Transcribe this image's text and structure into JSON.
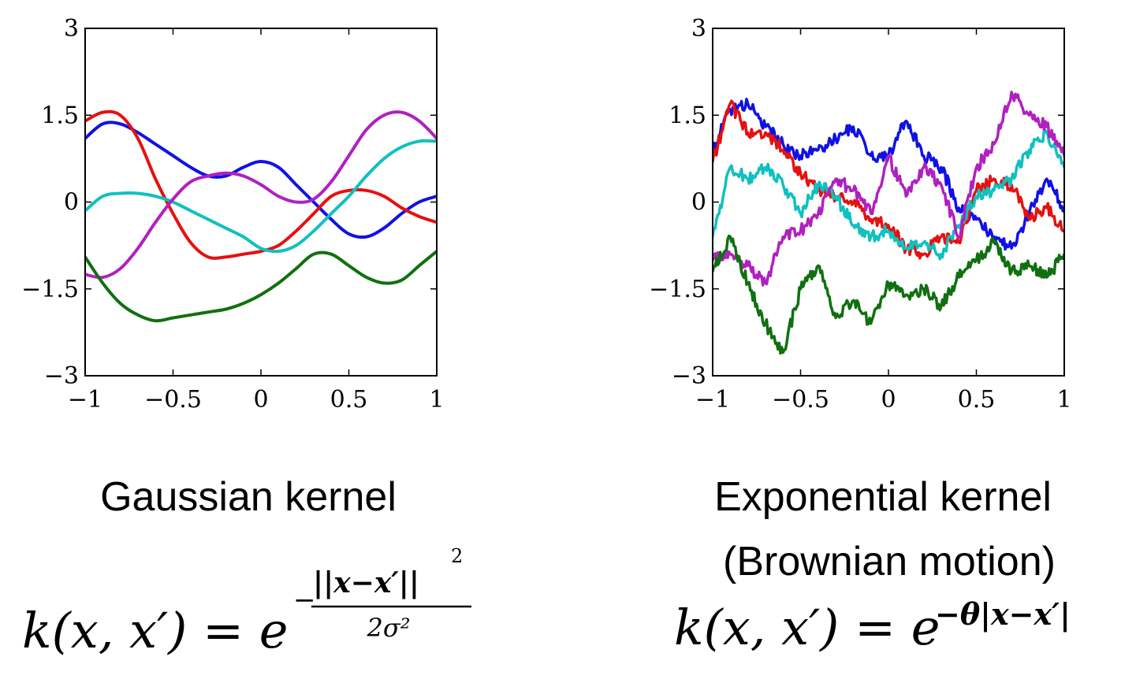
{
  "chart_data": [
    {
      "type": "line",
      "title": "",
      "xlabel": "",
      "ylabel": "",
      "xlim": [
        -1,
        1
      ],
      "ylim": [
        -3,
        3
      ],
      "x_ticks": [
        "−1",
        "−0.5",
        "0",
        "0.5",
        "1"
      ],
      "y_ticks": [
        "3",
        "1.5",
        "0",
        "−1.5",
        "−3"
      ],
      "x": [
        -1,
        -0.9,
        -0.8,
        -0.7,
        -0.6,
        -0.5,
        -0.4,
        -0.3,
        -0.2,
        -0.1,
        0,
        0.1,
        0.2,
        0.3,
        0.4,
        0.5,
        0.6,
        0.7,
        0.8,
        0.9,
        1
      ],
      "series": [
        {
          "color": "#1010e6",
          "values": [
            1.1,
            1.35,
            1.35,
            1.2,
            1.0,
            0.8,
            0.6,
            0.45,
            0.45,
            0.6,
            0.7,
            0.6,
            0.3,
            0.0,
            -0.3,
            -0.55,
            -0.6,
            -0.45,
            -0.2,
            0.0,
            0.1
          ]
        },
        {
          "color": "#e61010",
          "values": [
            1.4,
            1.55,
            1.5,
            1.1,
            0.4,
            -0.2,
            -0.7,
            -0.95,
            -0.95,
            -0.9,
            -0.85,
            -0.75,
            -0.5,
            -0.2,
            0.1,
            0.2,
            0.2,
            0.1,
            -0.1,
            -0.25,
            -0.35
          ]
        },
        {
          "color": "#10c0c0",
          "values": [
            -0.15,
            0.1,
            0.15,
            0.15,
            0.1,
            0.0,
            -0.15,
            -0.3,
            -0.45,
            -0.6,
            -0.8,
            -0.85,
            -0.75,
            -0.5,
            -0.2,
            0.1,
            0.45,
            0.75,
            0.95,
            1.05,
            1.05
          ]
        },
        {
          "color": "#b020c0",
          "values": [
            -1.25,
            -1.3,
            -1.15,
            -0.8,
            -0.35,
            0.05,
            0.35,
            0.45,
            0.5,
            0.45,
            0.3,
            0.1,
            0.0,
            0.05,
            0.35,
            0.8,
            1.25,
            1.5,
            1.55,
            1.4,
            1.1
          ]
        },
        {
          "color": "#107010",
          "values": [
            -0.95,
            -1.4,
            -1.75,
            -1.95,
            -2.05,
            -2.0,
            -1.95,
            -1.9,
            -1.85,
            -1.75,
            -1.6,
            -1.4,
            -1.15,
            -0.9,
            -0.9,
            -1.1,
            -1.3,
            -1.4,
            -1.35,
            -1.1,
            -0.85
          ]
        }
      ]
    },
    {
      "type": "line",
      "title": "",
      "xlabel": "",
      "ylabel": "",
      "xlim": [
        -1,
        1
      ],
      "ylim": [
        -3,
        3
      ],
      "x_ticks": [
        "−1",
        "−0.5",
        "0",
        "0.5",
        "1"
      ],
      "y_ticks": [
        "3",
        "1.5",
        "0",
        "−1.5",
        "−3"
      ],
      "x": [
        -1,
        -0.9,
        -0.8,
        -0.7,
        -0.6,
        -0.5,
        -0.4,
        -0.3,
        -0.2,
        -0.1,
        0,
        0.1,
        0.2,
        0.3,
        0.4,
        0.5,
        0.6,
        0.7,
        0.8,
        0.9,
        1
      ],
      "series": [
        {
          "color": "#1010e6",
          "values": [
            0.9,
            1.6,
            1.7,
            1.3,
            1.0,
            0.8,
            0.9,
            1.1,
            1.3,
            0.8,
            0.8,
            1.4,
            0.8,
            0.6,
            -0.1,
            -0.3,
            -0.6,
            -0.8,
            -0.2,
            0.4,
            -0.1
          ]
        },
        {
          "color": "#e61010",
          "values": [
            0.7,
            1.7,
            1.2,
            1.2,
            0.9,
            0.5,
            0.2,
            0.1,
            0.0,
            -0.3,
            -0.4,
            -0.8,
            -0.9,
            -0.6,
            -0.7,
            0.2,
            0.4,
            0.3,
            -0.3,
            -0.1,
            -0.5
          ]
        },
        {
          "color": "#10c0c0",
          "values": [
            -0.6,
            0.6,
            0.4,
            0.6,
            0.3,
            -0.2,
            0.3,
            0.1,
            -0.4,
            -0.6,
            -0.5,
            -0.8,
            -0.7,
            -0.9,
            -0.4,
            0.1,
            0.2,
            0.4,
            0.9,
            1.2,
            0.6
          ]
        },
        {
          "color": "#b020c0",
          "values": [
            -1.0,
            -0.9,
            -1.1,
            -1.4,
            -0.6,
            -0.5,
            -0.2,
            0.4,
            0.2,
            -0.2,
            0.8,
            0.1,
            0.6,
            0.3,
            -0.6,
            0.6,
            1.0,
            1.9,
            1.5,
            1.3,
            0.8
          ]
        },
        {
          "color": "#107010",
          "values": [
            -1.2,
            -0.6,
            -1.4,
            -2.1,
            -2.6,
            -1.5,
            -1.1,
            -2.0,
            -1.7,
            -2.1,
            -1.4,
            -1.6,
            -1.5,
            -1.8,
            -1.3,
            -1.0,
            -0.7,
            -1.2,
            -1.1,
            -1.3,
            -0.9
          ]
        }
      ]
    }
  ],
  "captions": {
    "left_title": "Gaussian kernel",
    "right_title_line1": "Exponential kernel",
    "right_title_line2": "(Brownian motion)"
  },
  "formulas": {
    "gaussian": {
      "lhs": "k(x, x′) = e",
      "exp_numerator": "||x−x′||",
      "exp_numerator_power": "2",
      "exp_denominator": "2σ²",
      "exp_sign": "−"
    },
    "exponential": {
      "lhs": "k(x, x′) = e",
      "exponent": "−θ|x−x′|"
    }
  }
}
